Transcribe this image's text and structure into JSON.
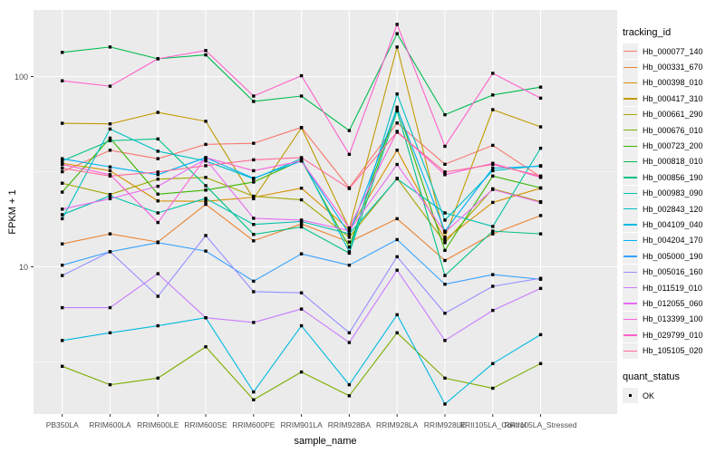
{
  "chart_data": {
    "type": "line",
    "xlabel": "sample_name",
    "ylabel": "FPKM + 1",
    "y_scale": "log10",
    "y_ticks": [
      100,
      10
    ],
    "y_minor_ticks": [
      31.62,
      3.162
    ],
    "legend_position": "right",
    "grid": true,
    "panel_bg": "#EBEBEB",
    "grid_color": "#FFFFFF",
    "point_marker": "black-square",
    "categories": [
      "PB350LA",
      "RRIM600LA",
      "RRIM600LE",
      "RRIM600SE",
      "RRIM600PE",
      "RRIM901LA",
      "RRIM928BA",
      "RRIM928LA",
      "RRIM928LE",
      "RRII105LA_Control",
      "RRII105LA_Stressed"
    ],
    "series": [
      {
        "name": "Hb_000077_140",
        "color": "#F8766D",
        "values": [
          31.6,
          41.0,
          37.0,
          44.0,
          44.6,
          54.0,
          26.0,
          57.0,
          34.6,
          43.5,
          29.7
        ]
      },
      {
        "name": "Hb_000331_670",
        "color": "#EA8331",
        "values": [
          13.2,
          14.9,
          13.5,
          21.3,
          13.7,
          16.8,
          13.5,
          17.9,
          10.8,
          14.9,
          18.6
        ]
      },
      {
        "name": "Hb_000398_010",
        "color": "#D89000",
        "values": [
          35.0,
          32.0,
          22.2,
          22.1,
          23.2,
          25.9,
          15.7,
          41.0,
          13.9,
          21.8,
          25.9
        ]
      },
      {
        "name": "Hb_000417_310",
        "color": "#C09B00",
        "values": [
          56.8,
          56.4,
          64.8,
          58.2,
          22.8,
          53.8,
          15.9,
          143.0,
          14.3,
          67.0,
          54.4
        ]
      },
      {
        "name": "Hb_000661_290",
        "color": "#A3A500",
        "values": [
          27.5,
          24.0,
          28.9,
          29.5,
          23.5,
          22.5,
          14.3,
          29.2,
          13.4,
          25.7,
          22.0
        ]
      },
      {
        "name": "Hb_000676_010",
        "color": "#7CAE00",
        "values": [
          3.0,
          2.4,
          2.6,
          3.8,
          2.0,
          2.8,
          2.1,
          4.5,
          2.6,
          2.3,
          3.1
        ]
      },
      {
        "name": "Hb_000723_200",
        "color": "#39B600",
        "values": [
          24.7,
          47.5,
          24.1,
          25.3,
          27.9,
          36.3,
          12.7,
          69.0,
          12.2,
          30.0,
          26.0
        ]
      },
      {
        "name": "Hb_000818_010",
        "color": "#00BB4E",
        "values": [
          134.0,
          143.0,
          124.0,
          130.0,
          74.0,
          79.0,
          52.0,
          168.0,
          63.0,
          80.0,
          88.0
        ]
      },
      {
        "name": "Hb_000856_190",
        "color": "#00C087",
        "values": [
          36.0,
          46.0,
          47.0,
          26.7,
          14.8,
          16.2,
          11.8,
          66.0,
          9.0,
          15.4,
          14.9
        ]
      },
      {
        "name": "Hb_000983_090",
        "color": "#00C1AB",
        "values": [
          18.8,
          23.6,
          19.2,
          22.9,
          16.7,
          17.3,
          14.9,
          29.0,
          19.2,
          16.3,
          42.0
        ]
      },
      {
        "name": "Hb_002843_120",
        "color": "#00BFC4",
        "values": [
          17.9,
          53.0,
          40.5,
          36.0,
          29.0,
          37.0,
          12.0,
          81.0,
          17.6,
          32.0,
          34.0
        ]
      },
      {
        "name": "Hb_004109_040",
        "color": "#00BAE0",
        "values": [
          4.1,
          4.5,
          4.9,
          5.4,
          2.2,
          4.9,
          2.4,
          5.6,
          1.9,
          3.1,
          4.4
        ]
      },
      {
        "name": "Hb_004204_170",
        "color": "#00B0F6",
        "values": [
          37.0,
          33.5,
          30.5,
          37.5,
          29.2,
          36.0,
          14.9,
          68.0,
          15.4,
          33.0,
          33.8
        ]
      },
      {
        "name": "Hb_005000_190",
        "color": "#35A2FF",
        "values": [
          10.2,
          12.0,
          13.4,
          12.1,
          8.4,
          11.7,
          10.2,
          13.9,
          8.1,
          9.1,
          8.6
        ]
      },
      {
        "name": "Hb_005016_160",
        "color": "#9590FF",
        "values": [
          9.0,
          12.0,
          7.0,
          14.6,
          7.4,
          7.3,
          4.5,
          11.3,
          5.7,
          7.9,
          8.7
        ]
      },
      {
        "name": "Hb_011519_010",
        "color": "#C77CFF",
        "values": [
          6.1,
          6.1,
          9.2,
          5.4,
          5.1,
          6.0,
          4.0,
          9.6,
          4.1,
          5.9,
          7.7
        ]
      },
      {
        "name": "Hb_012055_060",
        "color": "#E76BF3",
        "values": [
          20.1,
          22.8,
          26.5,
          36.8,
          18.0,
          17.6,
          15.5,
          34.5,
          15.2,
          25.5,
          21.8
        ]
      },
      {
        "name": "Hb_013399_100",
        "color": "#FA62DB",
        "values": [
          34.5,
          30.5,
          17.1,
          37.5,
          32.0,
          36.0,
          16.0,
          51.5,
          30.5,
          35.0,
          29.5
        ]
      },
      {
        "name": "Hb_029799_010",
        "color": "#FF61CC",
        "values": [
          95.0,
          89.0,
          124.0,
          137.0,
          79.0,
          101.0,
          39.0,
          188.0,
          43.0,
          104.0,
          77.0
        ]
      },
      {
        "name": "Hb_105105_020",
        "color": "#FF6A98",
        "values": [
          33.0,
          30.0,
          31.5,
          34.0,
          36.5,
          37.5,
          25.8,
          51.0,
          31.5,
          34.5,
          30.0
        ]
      }
    ],
    "series_legend": {
      "title": "tracking_id"
    },
    "quant_legend": {
      "title": "quant_status",
      "items": [
        {
          "label": "OK",
          "marker": "black-square"
        }
      ]
    }
  }
}
